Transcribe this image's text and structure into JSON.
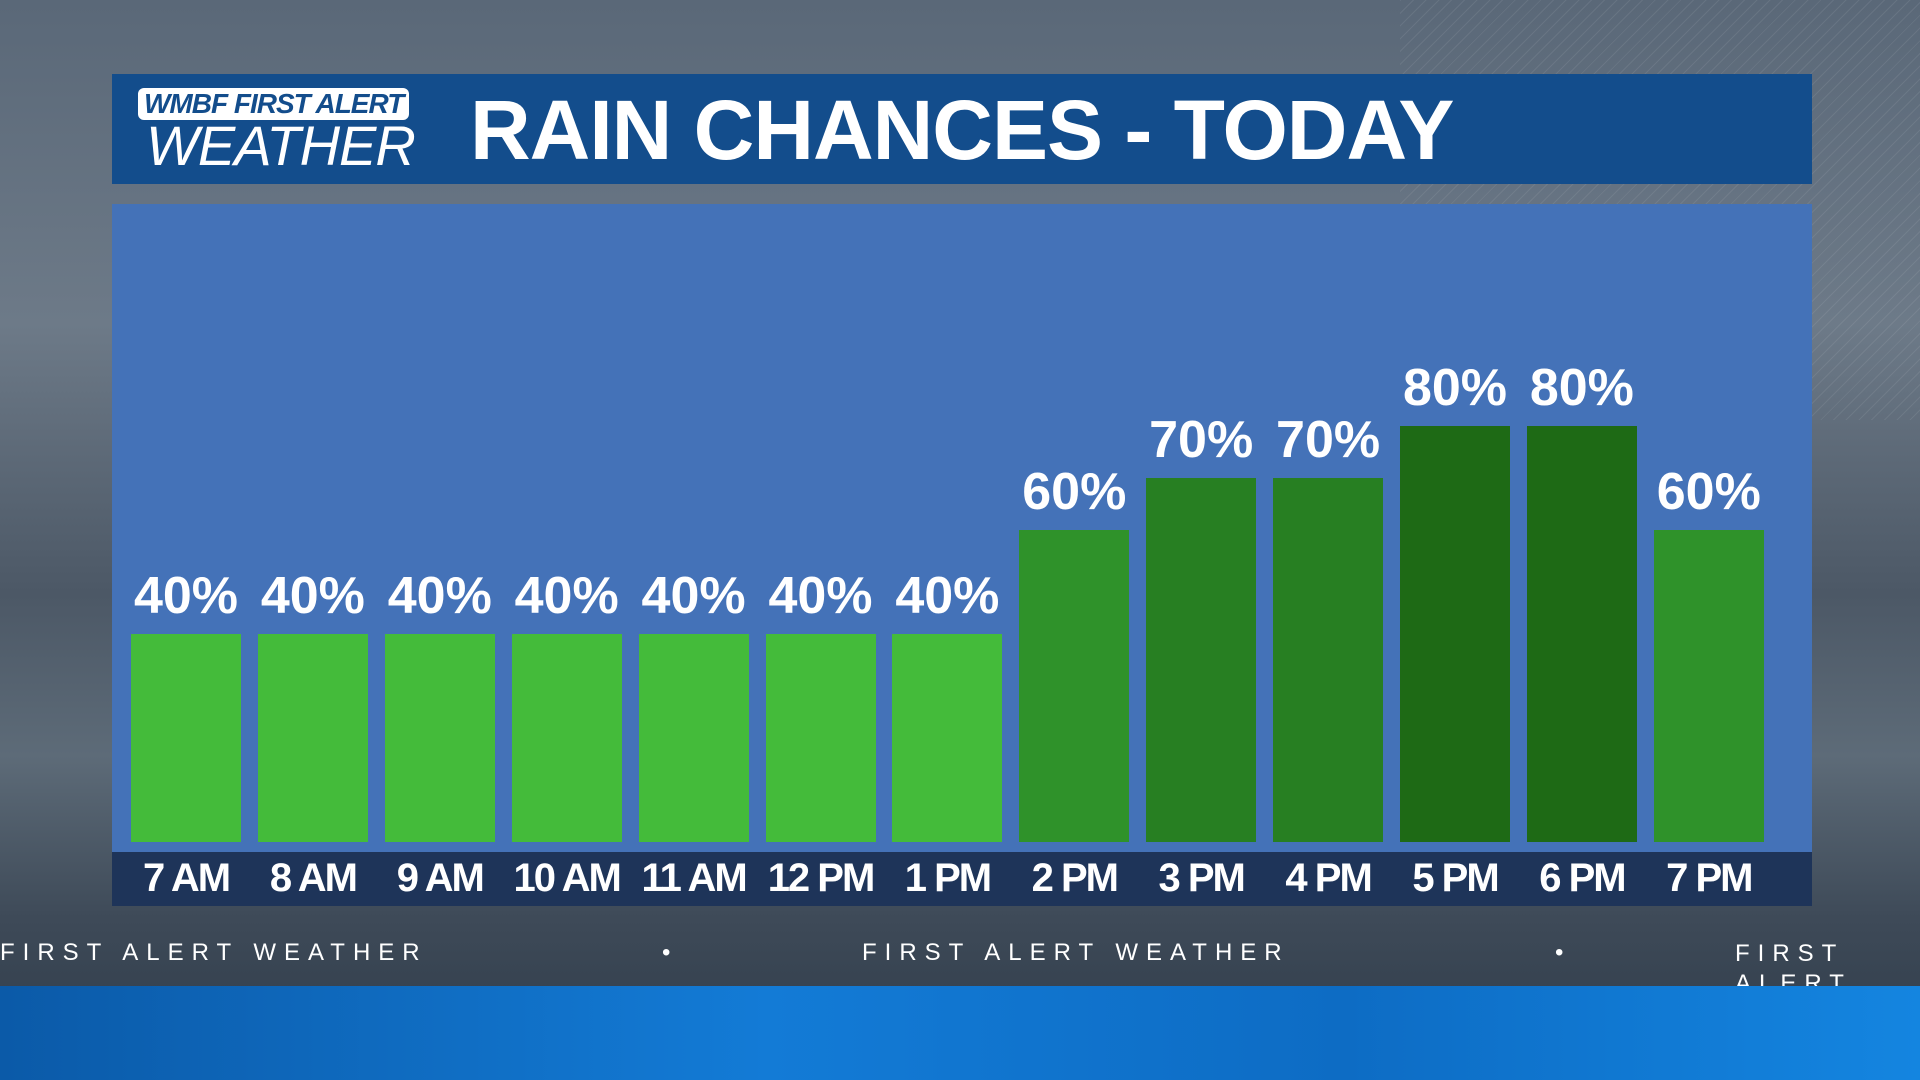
{
  "logo": {
    "line1": "WMBF FIRST ALERT",
    "line2": "WEATHER"
  },
  "title": "RAIN CHANCES - TODAY",
  "ticker": {
    "text": "FIRST ALERT WEATHER",
    "separator": "•"
  },
  "colors": {
    "header": "#134d8c",
    "panel": "#4472b8",
    "label_bar": "#1e3459",
    "green_40": "#44bb3a",
    "green_60": "#2f922a",
    "green_70": "#277f22",
    "green_80": "#1e6a15"
  },
  "chart_data": {
    "type": "bar",
    "title": "RAIN CHANCES - TODAY",
    "categories": [
      "7 AM",
      "8 AM",
      "9 AM",
      "10 AM",
      "11 AM",
      "12 PM",
      "1 PM",
      "2 PM",
      "3 PM",
      "4 PM",
      "5 PM",
      "6 PM",
      "7 PM"
    ],
    "values": [
      40,
      40,
      40,
      40,
      40,
      40,
      40,
      60,
      70,
      70,
      80,
      80,
      60
    ],
    "labels": [
      "40%",
      "40%",
      "40%",
      "40%",
      "40%",
      "40%",
      "40%",
      "60%",
      "70%",
      "70%",
      "80%",
      "80%",
      "60%"
    ],
    "unit": "%",
    "ylim": [
      0,
      100
    ],
    "grid": false
  }
}
